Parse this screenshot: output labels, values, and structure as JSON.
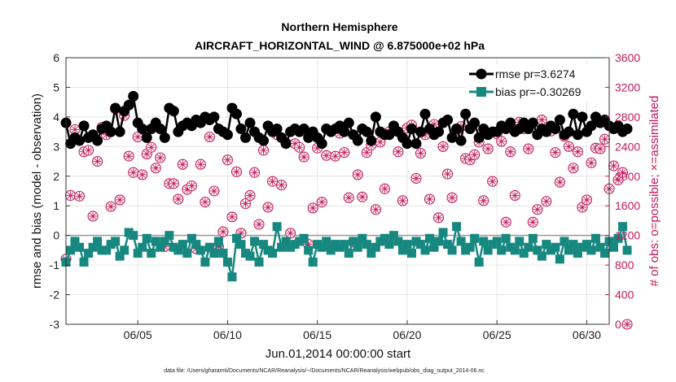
{
  "chart_data": {
    "type": "line",
    "title_line1": "Northern Hemisphere",
    "title_line2": "AIRCRAFT_HORIZONTAL_WIND @ 6.875000e+02 hPa",
    "xlabel": "Jun.01,2014 00:00:00 start",
    "ylabel_left": "rmse and bias (model - observation)",
    "ylabel_right": "# of obs: o=possible; ×=assimilated",
    "footnote": "data file: /Users/gharamti/Documents/NCAR/Reanalysis/~/Documents/NCAR/Reanalysis/webpub/obs_diag_output_2014-06.nc",
    "xlim": [
      1,
      31.25
    ],
    "ylim_left": [
      -3,
      6
    ],
    "ylim_right": [
      0,
      3600
    ],
    "left_ticks": [
      "-3",
      "-2",
      "-1",
      "0",
      "1",
      "2",
      "3",
      "4",
      "5",
      "6"
    ],
    "right_ticks": [
      "0",
      "400",
      "800",
      "1200",
      "1600",
      "2000",
      "2400",
      "2800",
      "3200",
      "3600"
    ],
    "x_ticks": [
      {
        "day": 5,
        "label": "06/05"
      },
      {
        "day": 10,
        "label": "06/10"
      },
      {
        "day": 15,
        "label": "06/15"
      },
      {
        "day": 20,
        "label": "06/20"
      },
      {
        "day": 25,
        "label": "06/25"
      },
      {
        "day": 30,
        "label": "06/30"
      }
    ],
    "legend": [
      {
        "name": "rmse pr=3.6274",
        "color": "#000000",
        "marker": "circle"
      },
      {
        "name": "bias pr=-0.30269",
        "color": "#17887f",
        "marker": "square"
      }
    ],
    "colors": {
      "rmse": "#000000",
      "bias": "#17887f",
      "obs": "#c2185b",
      "zero_line": "#999999"
    },
    "series": [
      {
        "name": "rmse",
        "x_start": 1.0,
        "x_step": 0.25,
        "values": [
          3.8,
          3.1,
          3.3,
          3.2,
          3.7,
          3.3,
          3.4,
          3.2,
          3.6,
          3.7,
          3.5,
          4.3,
          3.5,
          4.2,
          4.4,
          4.7,
          3.8,
          3.6,
          3.3,
          3.6,
          3.8,
          3.6,
          3.3,
          4.3,
          4.2,
          3.5,
          3.7,
          3.8,
          3.7,
          3.9,
          3.8,
          4.0,
          3.9,
          4.0,
          3.6,
          3.5,
          3.4,
          4.3,
          4.1,
          3.6,
          3.3,
          3.8,
          3.5,
          3.3,
          3.2,
          3.7,
          3.5,
          3.6,
          3.3,
          3.1,
          3.5,
          3.6,
          3.5,
          3.6,
          3.3,
          3.5,
          3.3,
          3.1,
          3.6,
          3.5,
          3.6,
          3.7,
          3.5,
          3.8,
          3.4,
          3.2,
          3.6,
          3.5,
          3.2,
          4.0,
          3.5,
          3.4,
          3.4,
          3.7,
          3.5,
          3.3,
          3.1,
          3.6,
          3.1,
          3.5,
          4.1,
          3.6,
          3.4,
          3.5,
          3.8,
          3.9,
          3.3,
          3.6,
          3.2,
          4.1,
          3.6,
          3.8,
          3.3,
          3.6,
          3.4,
          3.5,
          3.5,
          3.7,
          3.6,
          3.8,
          3.5,
          3.6,
          3.8,
          3.6,
          3.8,
          3.4,
          3.6,
          3.5,
          3.7,
          3.6,
          3.9,
          3.4,
          3.5,
          4.1,
          3.4,
          4.0,
          3.5,
          3.7,
          4.0,
          3.8,
          3.9,
          3.7,
          3.6,
          3.7,
          3.5,
          3.6
        ]
      },
      {
        "name": "bias",
        "x_start": 1.0,
        "x_step": 0.25,
        "values": [
          -0.9,
          -0.5,
          -0.2,
          -0.4,
          -0.9,
          -0.6,
          -0.4,
          -0.2,
          -0.5,
          -0.5,
          -0.3,
          -0.2,
          -0.7,
          -0.5,
          0.1,
          0.0,
          -0.6,
          -0.4,
          -0.1,
          -0.6,
          -0.2,
          -0.4,
          -0.2,
          0.0,
          -0.4,
          -0.5,
          -0.3,
          -0.6,
          -0.1,
          -0.3,
          -0.5,
          -0.9,
          -0.4,
          -0.6,
          -0.2,
          -0.6,
          -0.9,
          -1.4,
          -0.1,
          -0.3,
          -0.6,
          -0.7,
          -0.2,
          -0.9,
          -0.3,
          -0.5,
          -0.6,
          0.3,
          -0.4,
          -0.2,
          -0.4,
          -0.3,
          -0.2,
          -0.1,
          -0.5,
          -0.9,
          -0.3,
          -0.4,
          -0.2,
          -0.5,
          -0.3,
          -0.4,
          -0.3,
          -0.6,
          -0.2,
          -0.4,
          -0.1,
          -0.3,
          -0.6,
          -0.4,
          -0.2,
          -0.1,
          -0.3,
          0.0,
          -0.2,
          -0.5,
          -0.3,
          -0.6,
          -0.2,
          -0.3,
          -0.5,
          -0.1,
          -0.4,
          -0.2,
          0.1,
          -0.3,
          -0.5,
          0.3,
          -0.2,
          -0.5,
          -0.4,
          -0.1,
          -0.9,
          -0.2,
          -0.5,
          -0.3,
          -0.2,
          -0.5,
          -0.1,
          -0.4,
          -0.5,
          -0.2,
          -0.6,
          -0.4,
          -0.1,
          -0.5,
          -0.7,
          -0.3,
          -0.5,
          -0.4,
          -0.8,
          -0.2,
          -0.5,
          -0.3,
          -0.6,
          -0.4,
          -0.3,
          -0.5,
          -0.1,
          -0.4,
          -0.6,
          -0.2,
          -0.4,
          -0.1,
          0.3,
          -0.5
        ]
      },
      {
        "name": "obs",
        "x_start": 1.0,
        "x_step": 0.25,
        "values": [
          880,
          1740,
          2630,
          1730,
          2330,
          2350,
          1460,
          2200,
          2660,
          2560,
          1590,
          2910,
          1680,
          2820,
          2270,
          2050,
          2530,
          2020,
          2300,
          2390,
          2110,
          2250,
          1050,
          1900,
          1900,
          1690,
          2160,
          1820,
          1870,
          1020,
          2160,
          1650,
          2530,
          1800,
          1050,
          1250,
          2220,
          1450,
          2060,
          1230,
          1630,
          1740,
          2050,
          1350,
          2350,
          1580,
          1930,
          2560,
          1880,
          2450,
          1230,
          2440,
          2390,
          2260,
          1080,
          1570,
          2380,
          1650,
          2280,
          1040,
          2270,
          2580,
          2320,
          1710,
          1110,
          2020,
          1720,
          2320,
          2420,
          1550,
          2460,
          1830,
          2600,
          2620,
          2330,
          1670,
          2650,
          2690,
          1970,
          2310,
          2560,
          1690,
          2700,
          1440,
          2400,
          2030,
          1710,
          2620,
          2670,
          2240,
          2220,
          2290,
          2460,
          1670,
          2370,
          1930,
          2570,
          2470,
          1380,
          2330,
          1740,
          2730,
          2640,
          2370,
          1380,
          1550,
          2760,
          1660,
          2610,
          2320,
          1920,
          2540,
          2400,
          2110,
          2330,
          1580,
          1680,
          2180,
          2380,
          2370,
          2500,
          1830,
          2140,
          1950,
          2050,
          0
        ]
      }
    ]
  }
}
